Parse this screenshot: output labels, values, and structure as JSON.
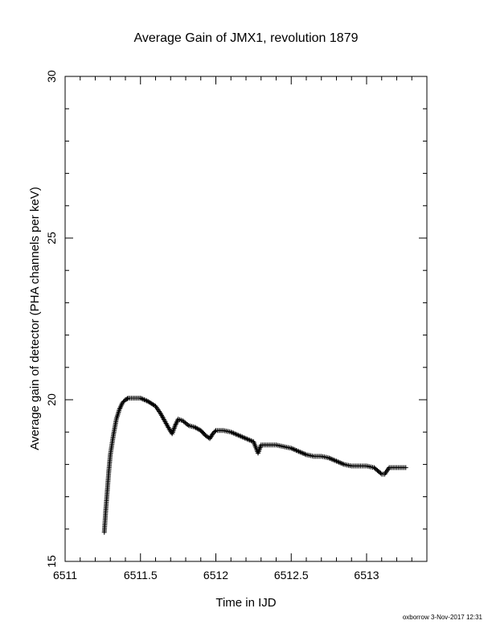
{
  "chart_data": {
    "type": "scatter",
    "title": "Average Gain of JMX1, revolution 1879",
    "xlabel": "Time in IJD",
    "ylabel": "Average gain of detector (PHA channels per keV)",
    "xlim": [
      6511,
      6513.4
    ],
    "ylim": [
      15,
      30
    ],
    "x_ticks": [
      6511,
      6511.5,
      6512,
      6512.5,
      6513
    ],
    "x_tick_labels": [
      "6511",
      "6511.5",
      "6512",
      "6512.5",
      "6513"
    ],
    "y_ticks": [
      15,
      20,
      25,
      30
    ],
    "y_tick_labels": [
      "15",
      "20",
      "25",
      "30"
    ],
    "grid": false,
    "marker": "plus",
    "series": [
      {
        "color": "#000000",
        "x": [
          6511.26,
          6511.27,
          6511.28,
          6511.29,
          6511.3,
          6511.32,
          6511.34,
          6511.36,
          6511.38,
          6511.4,
          6511.42,
          6511.45,
          6511.5,
          6511.55,
          6511.6,
          6511.63,
          6511.66,
          6511.69,
          6511.71,
          6511.73,
          6511.75,
          6511.78,
          6511.82,
          6511.86,
          6511.9,
          6511.93,
          6511.96,
          6511.98,
          6512.0,
          6512.05,
          6512.1,
          6512.15,
          6512.2,
          6512.25,
          6512.28,
          6512.3,
          6512.35,
          6512.4,
          6512.45,
          6512.5,
          6512.55,
          6512.6,
          6512.65,
          6512.7,
          6512.75,
          6512.8,
          6512.85,
          6512.9,
          6512.95,
          6513.0,
          6513.05,
          6513.1,
          6513.12,
          6513.15,
          6513.2,
          6513.26
        ],
        "y": [
          15.9,
          16.6,
          17.2,
          17.8,
          18.3,
          18.9,
          19.4,
          19.7,
          19.9,
          20.0,
          20.05,
          20.05,
          20.05,
          19.95,
          19.8,
          19.6,
          19.35,
          19.1,
          18.95,
          19.2,
          19.4,
          19.35,
          19.2,
          19.15,
          19.05,
          18.9,
          18.8,
          18.95,
          19.05,
          19.05,
          19.0,
          18.9,
          18.8,
          18.7,
          18.35,
          18.6,
          18.6,
          18.6,
          18.55,
          18.5,
          18.4,
          18.3,
          18.25,
          18.25,
          18.2,
          18.1,
          18.0,
          17.95,
          17.95,
          17.95,
          17.9,
          17.7,
          17.7,
          17.9,
          17.9,
          17.9
        ]
      }
    ]
  },
  "footer": {
    "credit": "oxborrow  3-Nov-2017 12:31"
  }
}
